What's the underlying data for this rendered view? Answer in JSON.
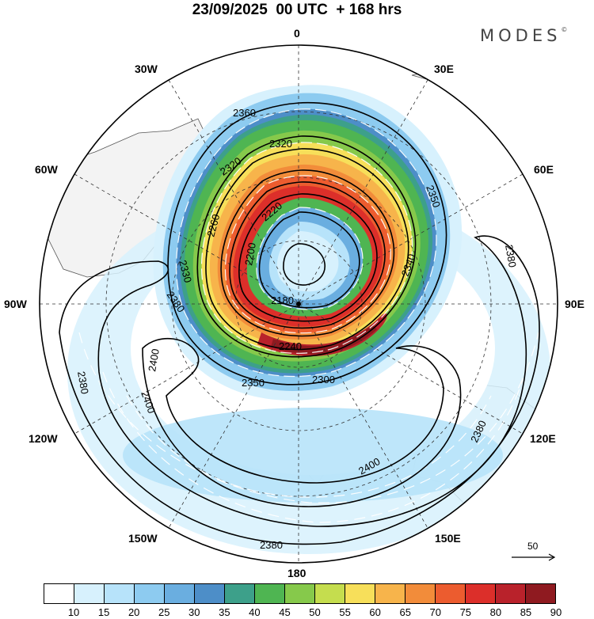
{
  "title": "23/09/2025  00 UTC  + 168 hrs",
  "brand": "MODES",
  "brand_mark": "©",
  "longitude_labels": {
    "top": "0",
    "top_right": "30E",
    "right_upper": "60E",
    "right": "90E",
    "right_lower": "120E",
    "bottom_right": "150E",
    "bottom": "180",
    "bottom_left": "150W",
    "left_lower": "120W",
    "left": "90W",
    "left_upper": "60W",
    "top_left": "30W"
  },
  "contour_labels": [
    "2360",
    "2320",
    "2320",
    "2350",
    "2220",
    "2260",
    "2200",
    "2340",
    "2330",
    "2380",
    "2180",
    "2380",
    "2240",
    "2300",
    "2400",
    "2350",
    "2400",
    "2380",
    "2400",
    "2380",
    "2380"
  ],
  "reference_vector": "50",
  "colorbar": {
    "ticks": [
      "10",
      "15",
      "20",
      "25",
      "30",
      "35",
      "40",
      "45",
      "50",
      "55",
      "60",
      "65",
      "70",
      "75",
      "80",
      "85",
      "90"
    ],
    "colors": [
      "#ffffff",
      "#d7f1fd",
      "#b7e3fa",
      "#8dcbf0",
      "#6aaee0",
      "#4d8ec8",
      "#3da08a",
      "#4fb552",
      "#86c94b",
      "#c5dd4e",
      "#f7df5a",
      "#f7b44b",
      "#f28c3a",
      "#ec5c2f",
      "#dc2f2a",
      "#b9222b",
      "#8f1a20"
    ]
  }
}
